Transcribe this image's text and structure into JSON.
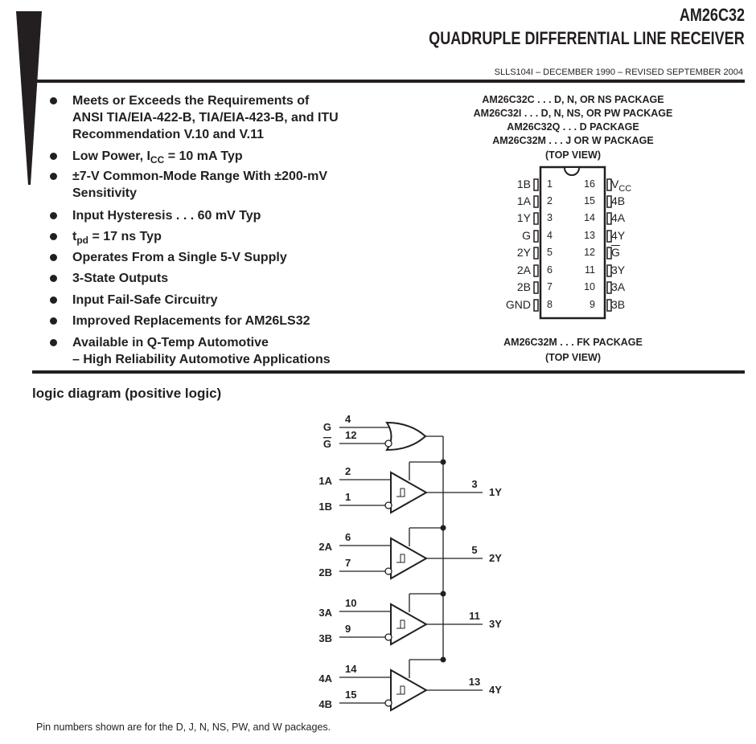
{
  "header": {
    "part": "AM26C32",
    "title": "QUADRUPLE DIFFERENTIAL LINE RECEIVER",
    "doc_id": "SLLS104I – DECEMBER 1990 – REVISED SEPTEMBER 2004"
  },
  "features": [
    {
      "lines": [
        "Meets or Exceeds the Requirements of",
        "ANSI TIA/EIA-422-B, TIA/EIA-423-B, and ITU",
        "Recommendation V.10 and V.11"
      ]
    },
    {
      "pre": "Low Power, I",
      "sub": "CC",
      "post": " = 10 mA Typ"
    },
    {
      "lines": [
        "±7-V Common-Mode Range With ±200-mV",
        "Sensitivity"
      ]
    },
    {
      "lines": [
        "Input  Hysteresis . . . 60 mV Typ"
      ]
    },
    {
      "pre": "t",
      "sub": "pd",
      "post": " = 17 ns Typ"
    },
    {
      "lines": [
        "Operates From a Single 5-V Supply"
      ]
    },
    {
      "lines": [
        "3-State Outputs"
      ]
    },
    {
      "lines": [
        "Input Fail-Safe Circuitry"
      ]
    },
    {
      "lines": [
        "Improved Replacements for AM26LS32"
      ]
    },
    {
      "lines": [
        "Available in Q-Temp Automotive",
        "–  High Reliability Automotive Applications"
      ]
    }
  ],
  "packages": {
    "lines": [
      "AM26C32C . . .  D, N, OR NS PACKAGE",
      "AM26C32I . . .  D, N, NS, OR PW PACKAGE",
      "AM26C32Q . . . D PACKAGE",
      "AM26C32M . . . J OR W PACKAGE",
      "(TOP VIEW)"
    ],
    "left_pins": [
      {
        "n": "1",
        "name": "1B"
      },
      {
        "n": "2",
        "name": "1A"
      },
      {
        "n": "3",
        "name": "1Y"
      },
      {
        "n": "4",
        "name": "G"
      },
      {
        "n": "5",
        "name": "2Y"
      },
      {
        "n": "6",
        "name": "2A"
      },
      {
        "n": "7",
        "name": "2B"
      },
      {
        "n": "8",
        "name": "GND"
      }
    ],
    "right_pins": [
      {
        "n": "16",
        "name": "V",
        "sub": "CC"
      },
      {
        "n": "15",
        "name": "4B"
      },
      {
        "n": "14",
        "name": "4A"
      },
      {
        "n": "13",
        "name": "4Y"
      },
      {
        "n": "12",
        "name": "G",
        "overline": true
      },
      {
        "n": "11",
        "name": "3Y"
      },
      {
        "n": "10",
        "name": "3A"
      },
      {
        "n": "9",
        "name": "3B"
      }
    ],
    "fk_lines": [
      "AM26C32M . . . FK PACKAGE",
      "(TOP VIEW)"
    ]
  },
  "logic": {
    "title": "logic diagram (positive logic)",
    "enable": {
      "g_label": "G",
      "g_pin": "4",
      "gbar_label": "G",
      "gbar_pin": "12"
    },
    "receivers": [
      {
        "a": "1A",
        "a_pin": "2",
        "b": "1B",
        "b_pin": "1",
        "y": "1Y",
        "y_pin": "3"
      },
      {
        "a": "2A",
        "a_pin": "6",
        "b": "2B",
        "b_pin": "7",
        "y": "2Y",
        "y_pin": "5"
      },
      {
        "a": "3A",
        "a_pin": "10",
        "b": "3B",
        "b_pin": "9",
        "y": "3Y",
        "y_pin": "11"
      },
      {
        "a": "4A",
        "a_pin": "14",
        "b": "4B",
        "b_pin": "15",
        "y": "4Y",
        "y_pin": "13"
      }
    ],
    "note": "Pin numbers shown are for the D, J, N, NS, PW, and W packages."
  }
}
